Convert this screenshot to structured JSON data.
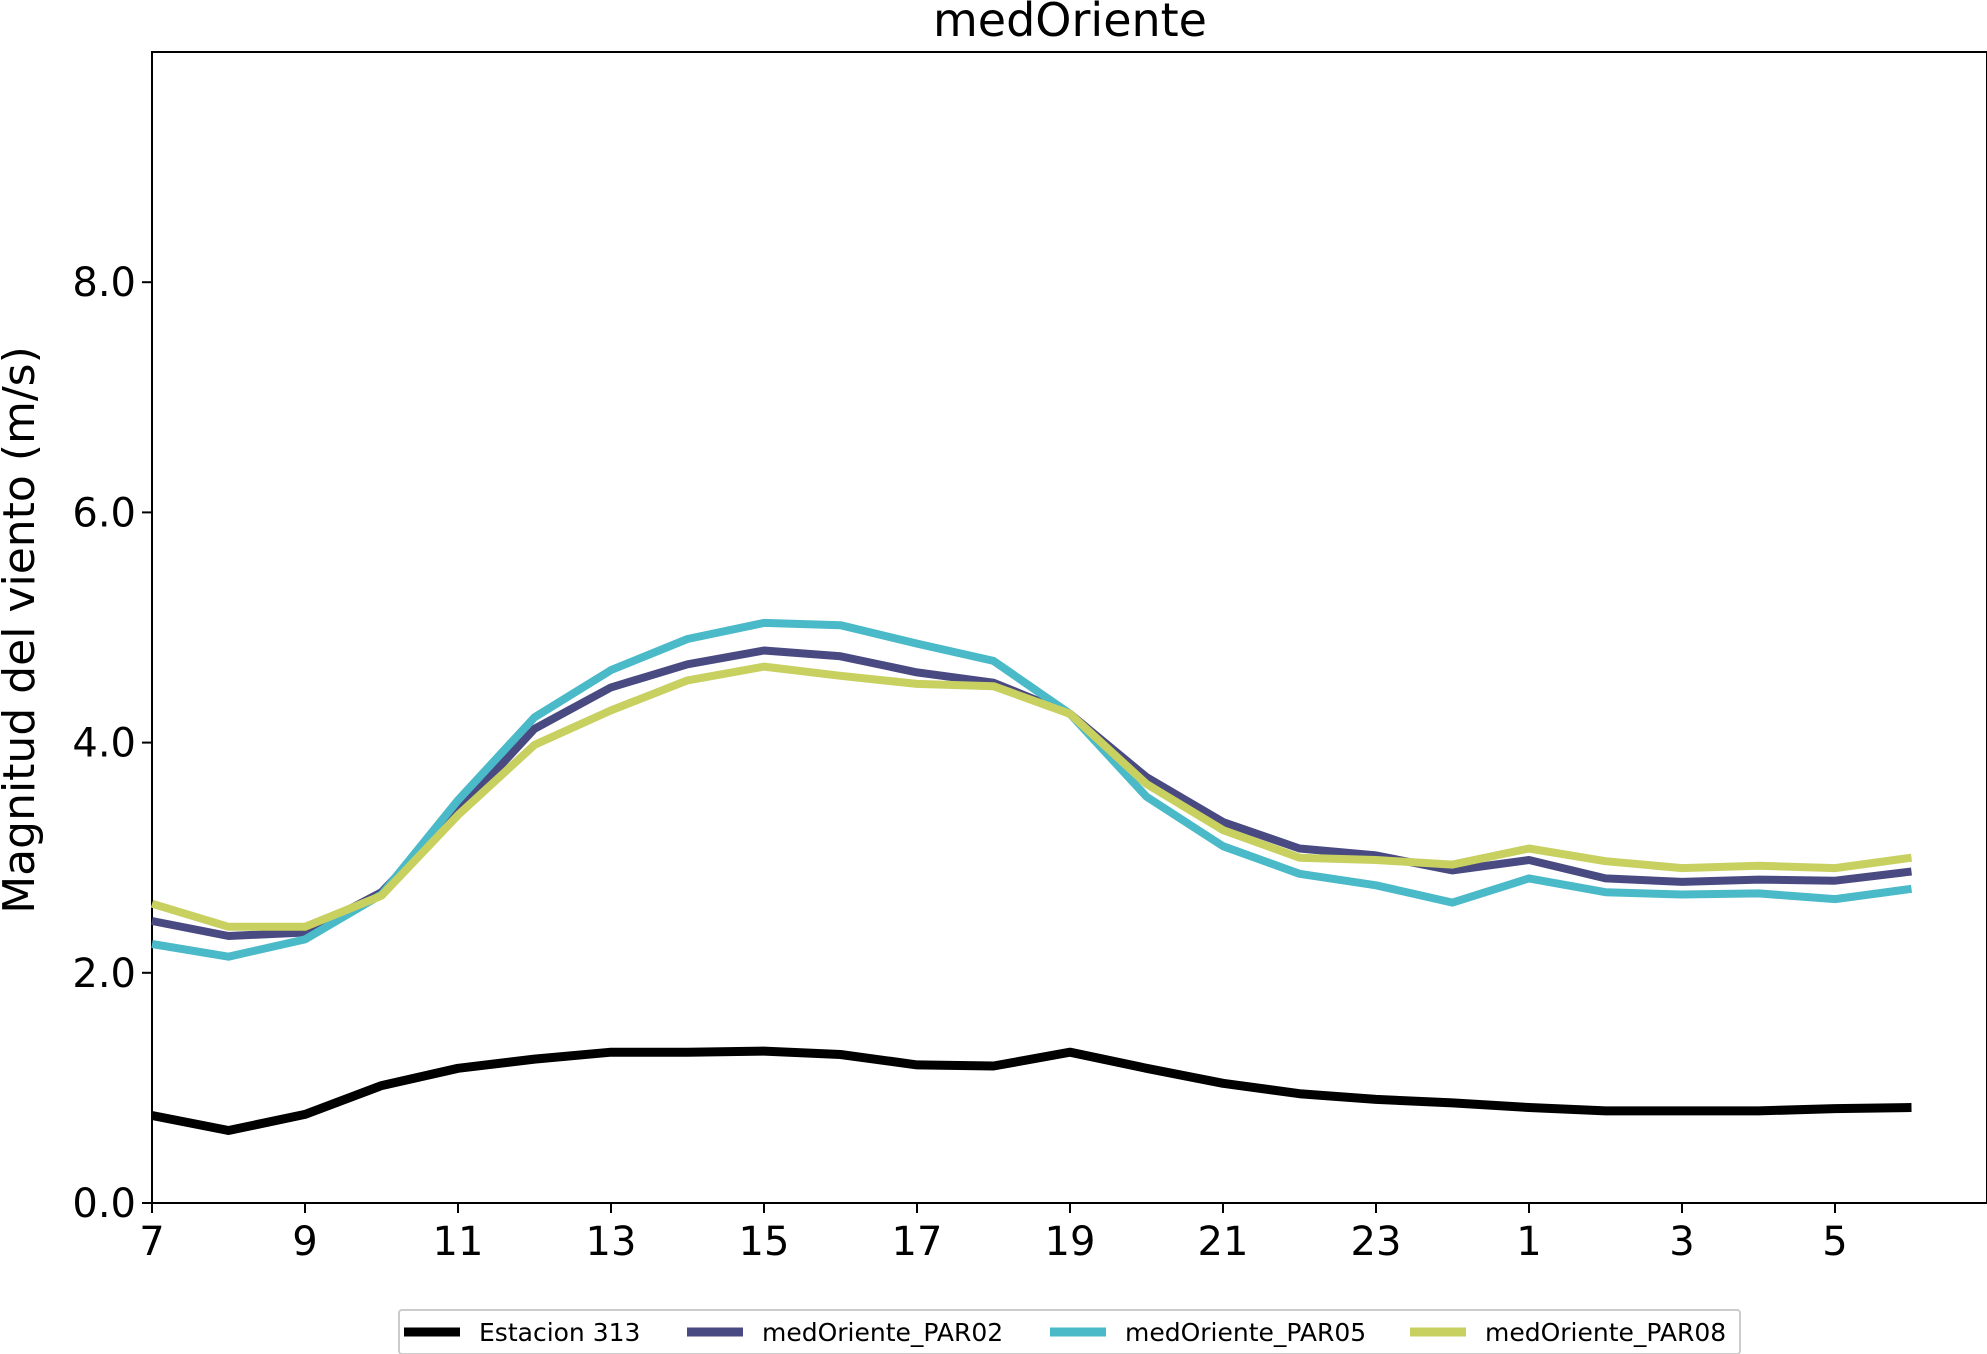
{
  "chart_data": {
    "type": "line",
    "title": "medOriente",
    "xlabel": "",
    "ylabel": "Magnitud del viento (m/s)",
    "x": [
      "7",
      "8",
      "9",
      "10",
      "11",
      "12",
      "13",
      "14",
      "15",
      "16",
      "17",
      "18",
      "19",
      "20",
      "21",
      "22",
      "23",
      "0",
      "1",
      "2",
      "3",
      "4",
      "5",
      "6"
    ],
    "xticks": [
      "7",
      "9",
      "11",
      "13",
      "15",
      "17",
      "19",
      "21",
      "23",
      "1",
      "3",
      "5"
    ],
    "yticks": [
      "0.0",
      "2.0",
      "4.0",
      "6.0",
      "8.0"
    ],
    "ylim": [
      0,
      10
    ],
    "grid": false,
    "legend_position": "bottom-center",
    "series": [
      {
        "name": "Estacion 313",
        "color": "#000000",
        "values": [
          0.76,
          0.63,
          0.77,
          1.02,
          1.17,
          1.25,
          1.31,
          1.31,
          1.32,
          1.29,
          1.2,
          1.19,
          1.31,
          1.17,
          1.04,
          0.95,
          0.9,
          0.87,
          0.83,
          0.8,
          0.8,
          0.8,
          0.82,
          0.83
        ]
      },
      {
        "name": "medOriente_PAR02",
        "color": "#4a4a82",
        "values": [
          2.45,
          2.32,
          2.35,
          2.7,
          3.4,
          4.12,
          4.48,
          4.68,
          4.8,
          4.75,
          4.61,
          4.52,
          4.25,
          3.7,
          3.31,
          3.08,
          3.02,
          2.89,
          2.98,
          2.82,
          2.79,
          2.81,
          2.8,
          2.88
        ]
      },
      {
        "name": "medOriente_PAR05",
        "color": "#4ab9c8",
        "values": [
          2.25,
          2.14,
          2.29,
          2.68,
          3.5,
          4.22,
          4.63,
          4.9,
          5.04,
          5.02,
          4.86,
          4.71,
          4.25,
          3.53,
          3.1,
          2.86,
          2.76,
          2.61,
          2.82,
          2.7,
          2.68,
          2.69,
          2.64,
          2.73
        ]
      },
      {
        "name": "medOriente_PAR08",
        "color": "#c8d060",
        "values": [
          2.6,
          2.4,
          2.4,
          2.67,
          3.37,
          3.98,
          4.28,
          4.54,
          4.66,
          4.58,
          4.51,
          4.49,
          4.25,
          3.64,
          3.24,
          3.0,
          2.98,
          2.94,
          3.08,
          2.97,
          2.91,
          2.93,
          2.91,
          3.0
        ]
      }
    ]
  }
}
